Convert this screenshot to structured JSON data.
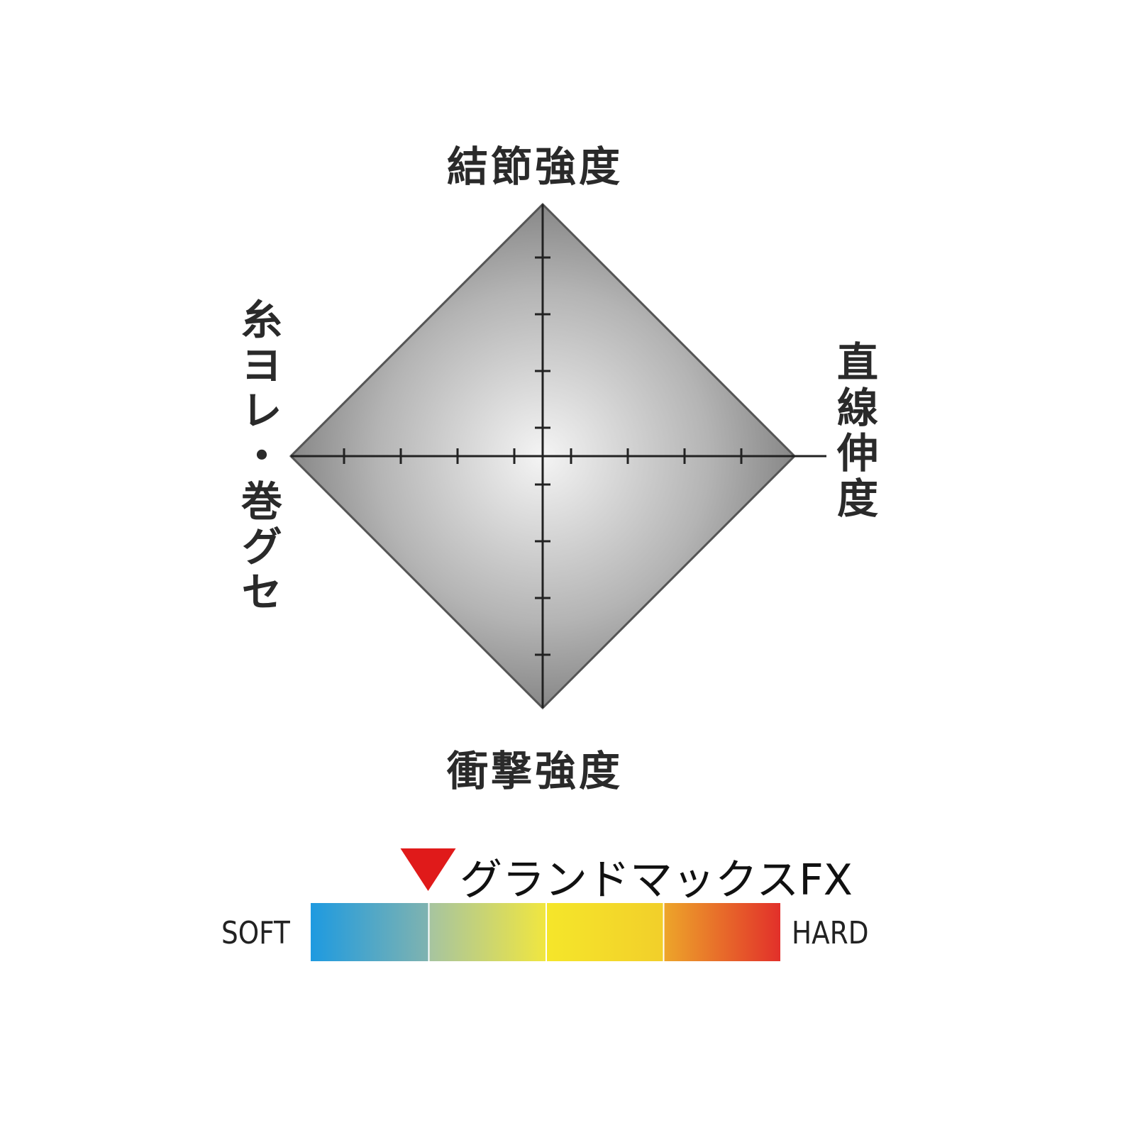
{
  "chart_data": {
    "type": "radar",
    "axes": [
      {
        "label": "結節強度",
        "position": "top",
        "value": 1.0
      },
      {
        "label": "直線伸度",
        "position": "right",
        "value": 1.0
      },
      {
        "label": "衝撃強度",
        "position": "bottom",
        "value": 1.0
      },
      {
        "label": "糸ヨレ・巻グセ",
        "position": "left",
        "value": 1.0
      }
    ],
    "fill": "radial gray gradient",
    "grid": false
  },
  "scale": {
    "soft_label": "SOFT",
    "hard_label": "HARD",
    "segment_colors": [
      [
        "#1e9ae0",
        "#7fb3b0"
      ],
      [
        "#a6c4a0",
        "#f0e640"
      ],
      [
        "#f5e62a",
        "#f2cf2a"
      ],
      [
        "#eda52a",
        "#e2302a"
      ]
    ],
    "marker": {
      "label": "グランドマックスFX",
      "position": 0.25,
      "color": "#e01a1a"
    }
  }
}
